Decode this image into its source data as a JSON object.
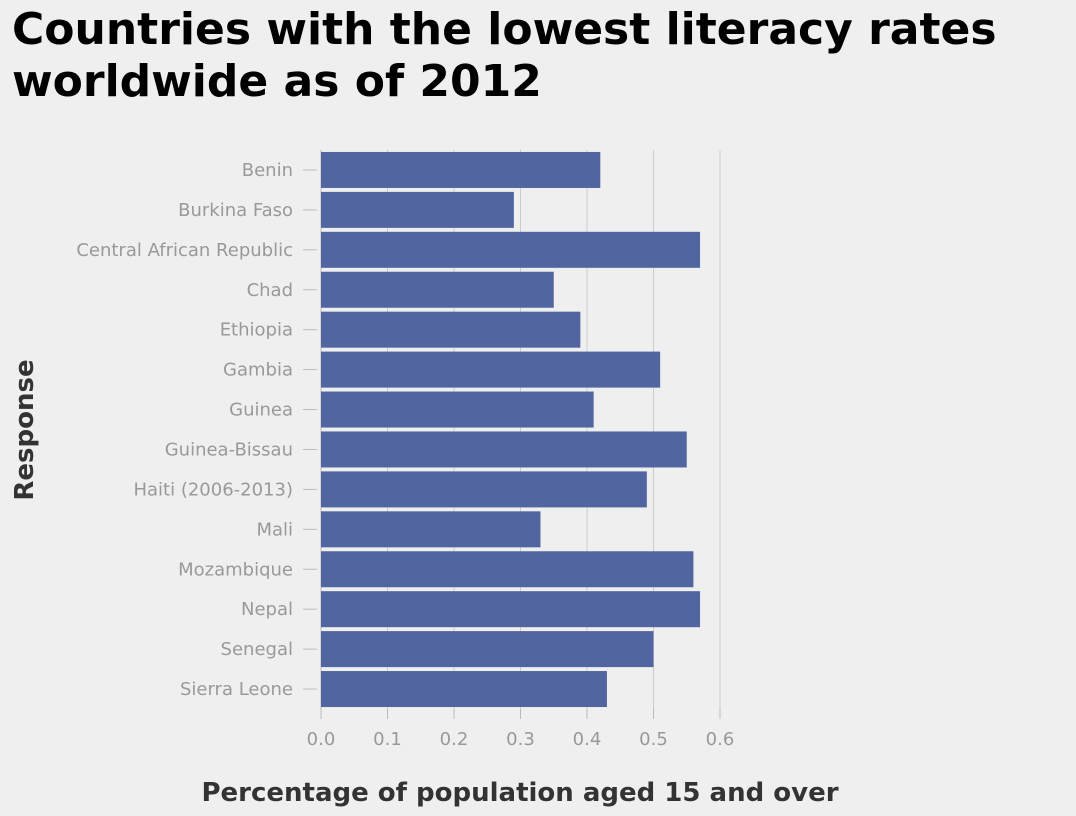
{
  "chart_data": {
    "type": "bar",
    "orientation": "horizontal",
    "title": "Countries with the lowest literacy rates worldwide as of 2012",
    "xlabel": "Percentage of population aged 15 and over",
    "ylabel": "Response",
    "categories": [
      "Benin",
      "Burkina Faso",
      "Central African Republic",
      "Chad",
      "Ethiopia",
      "Gambia",
      "Guinea",
      "Guinea-Bissau",
      "Haiti (2006-2013)",
      "Mali",
      "Mozambique",
      "Nepal",
      "Senegal",
      "Sierra Leone"
    ],
    "values": [
      0.42,
      0.29,
      0.57,
      0.35,
      0.39,
      0.51,
      0.41,
      0.55,
      0.49,
      0.33,
      0.56,
      0.57,
      0.5,
      0.43
    ],
    "xlim": [
      0,
      0.6
    ],
    "xticks": [
      "0.0",
      "0.1",
      "0.2",
      "0.3",
      "0.4",
      "0.5",
      "0.6"
    ],
    "grid": "vertical",
    "legend": "none",
    "bar_color": "#5165a0",
    "background": "#efefef",
    "grid_color": "#cccccc"
  }
}
